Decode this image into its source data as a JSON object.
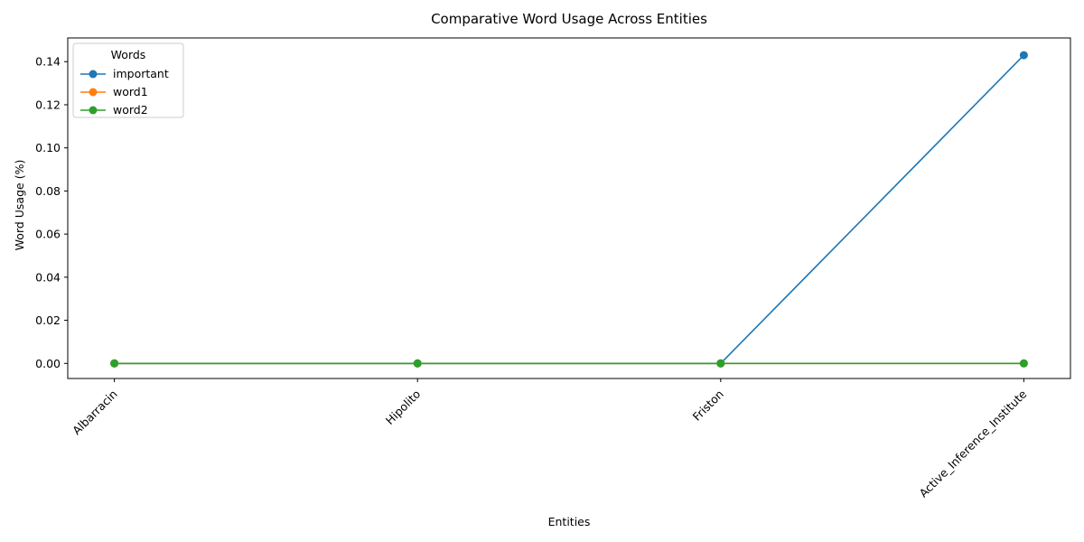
{
  "chart_data": {
    "type": "line",
    "title": "Comparative Word Usage Across Entities",
    "xlabel": "Entities",
    "ylabel": "Word Usage (%)",
    "categories": [
      "Albarracin",
      "Hipolito",
      "Friston",
      "Active_Inference_Institute"
    ],
    "ylim": [
      -0.007,
      0.151
    ],
    "yticks": [
      0.0,
      0.02,
      0.04,
      0.06,
      0.08,
      0.1,
      0.12,
      0.14
    ],
    "ytick_labels": [
      "0.00",
      "0.02",
      "0.04",
      "0.06",
      "0.08",
      "0.10",
      "0.12",
      "0.14"
    ],
    "grid": false,
    "legend": {
      "title": "Words",
      "placement": "top-left"
    },
    "series": [
      {
        "name": "important",
        "color": "#1f77b4",
        "values": [
          0.0,
          0.0,
          0.0,
          0.143
        ]
      },
      {
        "name": "word1",
        "color": "#ff7f0e",
        "values": [
          0.0,
          0.0,
          0.0,
          0.0
        ]
      },
      {
        "name": "word2",
        "color": "#2ca02c",
        "values": [
          0.0,
          0.0,
          0.0,
          0.0
        ]
      }
    ]
  }
}
